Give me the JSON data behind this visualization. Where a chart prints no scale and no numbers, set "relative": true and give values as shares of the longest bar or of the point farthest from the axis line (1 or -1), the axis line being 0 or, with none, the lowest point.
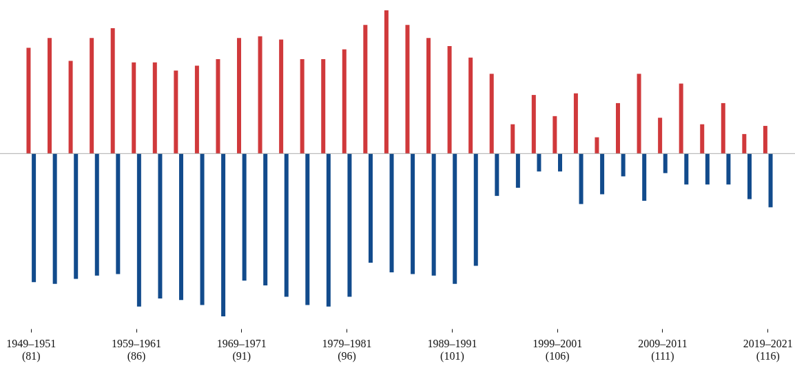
{
  "chart_data": {
    "type": "bar",
    "relative": true,
    "grid": false,
    "categories": [
      "1949–1951\n(81)",
      null,
      null,
      null,
      null,
      "1959–1961\n(86)",
      null,
      null,
      null,
      null,
      "1969–1971\n(91)",
      null,
      null,
      null,
      null,
      "1979–1981\n(96)",
      null,
      null,
      null,
      null,
      "1989–1991\n(101)",
      null,
      null,
      null,
      null,
      "1999–2001\n(106)",
      null,
      null,
      null,
      null,
      "2009–2011\n(111)",
      null,
      null,
      null,
      null,
      "2019–2021\n(116)"
    ],
    "series": [
      {
        "color": "#d0393b",
        "values": [
          0.65,
          0.71,
          0.57,
          0.71,
          0.77,
          0.56,
          0.56,
          0.51,
          0.54,
          0.58,
          0.71,
          0.72,
          0.7,
          0.58,
          0.58,
          0.64,
          0.79,
          0.88,
          0.79,
          0.71,
          0.66,
          0.59,
          0.49,
          0.18,
          0.36,
          0.23,
          0.37,
          0.1,
          0.31,
          0.49,
          0.22,
          0.43,
          0.18,
          0.31,
          0.12,
          0.17
        ]
      },
      {
        "color": "#124b8c",
        "values": [
          -0.79,
          -0.8,
          -0.77,
          -0.75,
          -0.74,
          -0.94,
          -0.89,
          -0.9,
          -0.93,
          -1,
          -0.78,
          -0.81,
          -0.88,
          -0.93,
          -0.94,
          -0.88,
          -0.67,
          -0.73,
          -0.74,
          -0.75,
          -0.8,
          -0.69,
          -0.26,
          -0.21,
          -0.11,
          -0.11,
          -0.31,
          -0.25,
          -0.14,
          -0.29,
          -0.12,
          -0.19,
          -0.19,
          -0.19,
          -0.28,
          -0.33
        ]
      }
    ]
  }
}
